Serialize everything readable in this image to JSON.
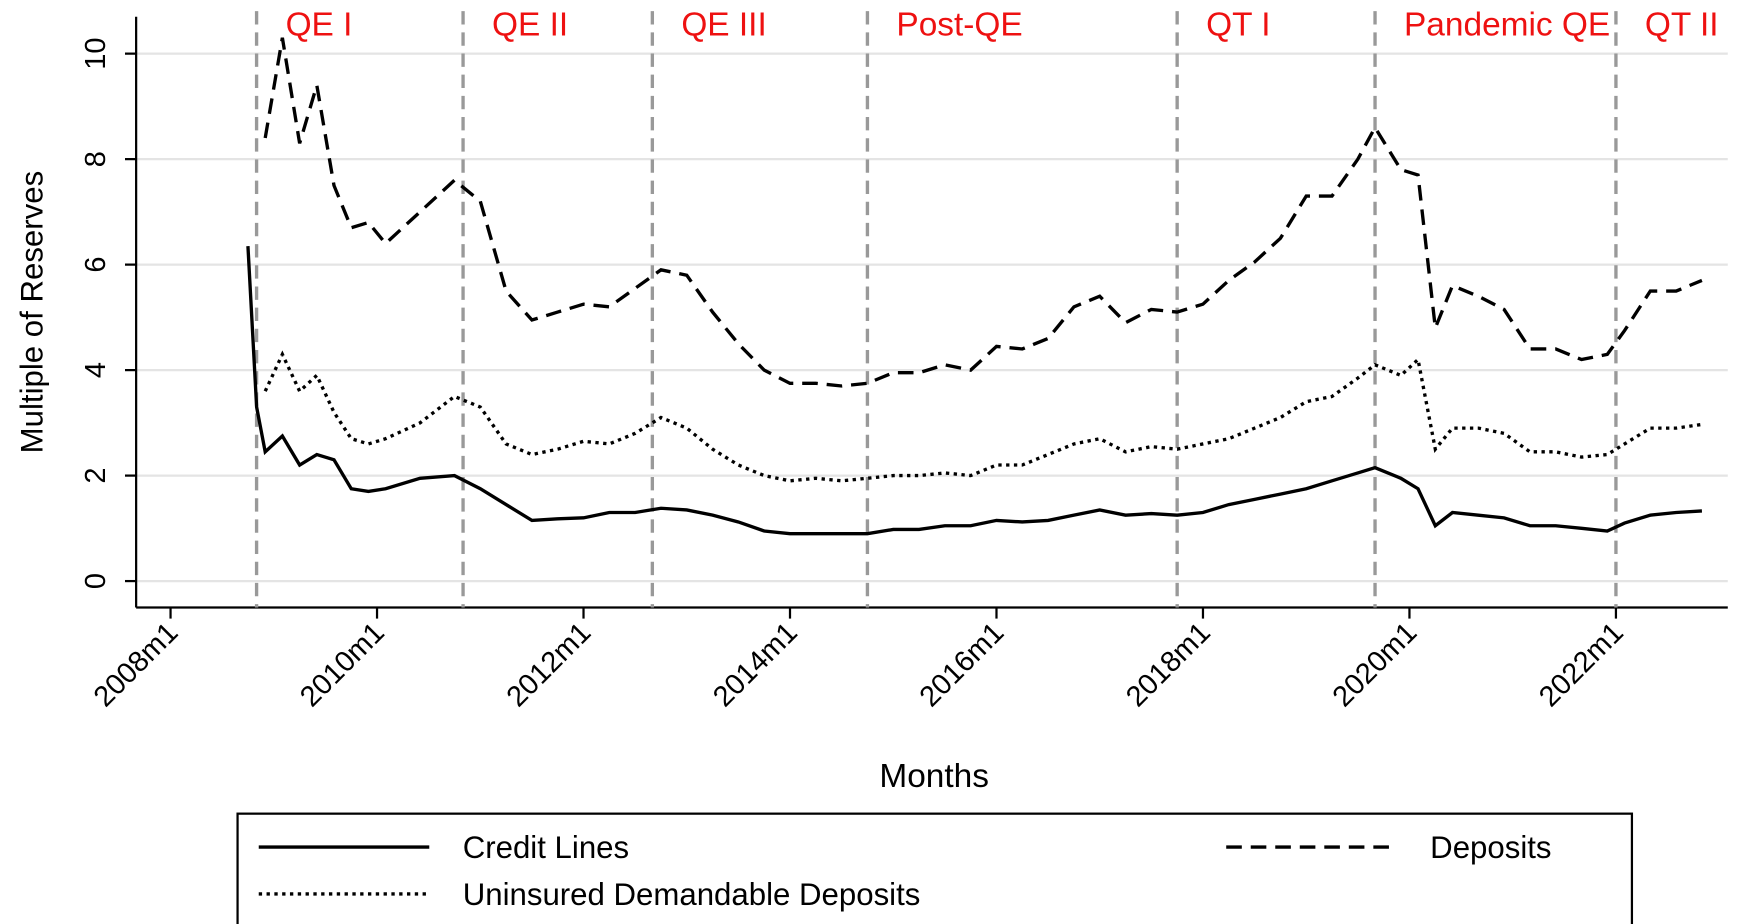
{
  "chart_data": {
    "type": "line",
    "x_label": "Months",
    "y_label": "Multiple of Reserves",
    "x": [
      "2008m10",
      "2008m11",
      "2008m12",
      "2009m2",
      "2009m4",
      "2009m6",
      "2009m8",
      "2009m10",
      "2009m12",
      "2010m2",
      "2010m6",
      "2010m10",
      "2011m1",
      "2011m4",
      "2011m7",
      "2011m10",
      "2012m1",
      "2012m4",
      "2012m7",
      "2012m10",
      "2013m1",
      "2013m4",
      "2013m7",
      "2013m10",
      "2014m1",
      "2014m4",
      "2014m7",
      "2014m10",
      "2015m1",
      "2015m4",
      "2015m7",
      "2015m10",
      "2016m1",
      "2016m4",
      "2016m7",
      "2016m10",
      "2017m1",
      "2017m4",
      "2017m7",
      "2017m10",
      "2018m1",
      "2018m4",
      "2018m7",
      "2018m10",
      "2019m1",
      "2019m4",
      "2019m7",
      "2019m9",
      "2019m12",
      "2020m2",
      "2020m4",
      "2020m6",
      "2020m9",
      "2020m12",
      "2021m3",
      "2021m6",
      "2021m9",
      "2021m12",
      "2022m2",
      "2022m5",
      "2022m8",
      "2022m11"
    ],
    "series": [
      {
        "name": "Credit Lines",
        "color": "#000000",
        "style": "solid",
        "values": [
          6.35,
          3.3,
          2.45,
          2.75,
          2.2,
          2.4,
          2.3,
          1.75,
          1.7,
          1.75,
          1.95,
          2.0,
          1.75,
          1.45,
          1.15,
          1.18,
          1.2,
          1.3,
          1.3,
          1.38,
          1.35,
          1.25,
          1.12,
          0.95,
          0.9,
          0.9,
          0.9,
          0.9,
          0.98,
          0.98,
          1.05,
          1.05,
          1.15,
          1.12,
          1.15,
          1.25,
          1.35,
          1.25,
          1.28,
          1.25,
          1.3,
          1.45,
          1.55,
          1.65,
          1.75,
          1.9,
          2.05,
          2.15,
          1.95,
          1.75,
          1.05,
          1.3,
          1.25,
          1.2,
          1.05,
          1.05,
          1.0,
          0.95,
          1.1,
          1.25,
          1.3,
          1.33
        ]
      },
      {
        "name": "Deposits",
        "color": "#000000",
        "style": "dashed",
        "values": [
          null,
          null,
          8.4,
          10.3,
          8.3,
          9.4,
          7.5,
          6.7,
          6.8,
          6.4,
          7.0,
          7.6,
          7.2,
          5.5,
          4.95,
          5.1,
          5.25,
          5.2,
          5.55,
          5.9,
          5.8,
          5.1,
          4.5,
          4.0,
          3.75,
          3.75,
          3.7,
          3.75,
          3.95,
          3.95,
          4.1,
          4.0,
          4.45,
          4.4,
          4.6,
          5.2,
          5.4,
          4.9,
          5.15,
          5.1,
          5.25,
          5.7,
          6.05,
          6.5,
          7.3,
          7.3,
          8.0,
          8.6,
          7.8,
          7.7,
          4.8,
          5.6,
          5.4,
          5.15,
          4.4,
          4.4,
          4.2,
          4.3,
          4.75,
          5.5,
          5.5,
          5.7
        ]
      },
      {
        "name": "Uninsured Demandable Deposits",
        "color": "#000000",
        "style": "dotted",
        "values": [
          null,
          null,
          3.6,
          4.3,
          3.6,
          3.9,
          3.2,
          2.7,
          2.6,
          2.7,
          3.0,
          3.5,
          3.3,
          2.6,
          2.4,
          2.5,
          2.65,
          2.6,
          2.8,
          3.1,
          2.9,
          2.5,
          2.2,
          2.0,
          1.9,
          1.95,
          1.9,
          1.95,
          2.0,
          2.0,
          2.05,
          2.0,
          2.2,
          2.2,
          2.4,
          2.6,
          2.7,
          2.45,
          2.55,
          2.5,
          2.6,
          2.7,
          2.9,
          3.1,
          3.4,
          3.5,
          3.85,
          4.1,
          3.9,
          4.2,
          2.5,
          2.9,
          2.9,
          2.8,
          2.45,
          2.45,
          2.35,
          2.4,
          2.6,
          2.9,
          2.9,
          2.97
        ]
      }
    ],
    "xlim": [
      "2007m9",
      "2023m2"
    ],
    "xticks": [
      "2008m1",
      "2010m1",
      "2012m1",
      "2014m1",
      "2016m1",
      "2018m1",
      "2020m1",
      "2022m1"
    ],
    "ylim": [
      -0.5,
      10.7
    ],
    "yticks": [
      0,
      2,
      4,
      6,
      8,
      10
    ],
    "grid": true,
    "periods": [
      {
        "label": "QE I",
        "start": "2008m11"
      },
      {
        "label": "QE II",
        "start": "2010m11"
      },
      {
        "label": "QE III",
        "start": "2012m9"
      },
      {
        "label": "Post-QE",
        "start": "2014m10"
      },
      {
        "label": "QT I",
        "start": "2017m10"
      },
      {
        "label": "Pandemic QE",
        "start": "2019m9"
      },
      {
        "label": "QT II",
        "start": "2022m1"
      }
    ],
    "period_color": "#ee1111",
    "legend": "bottom"
  }
}
